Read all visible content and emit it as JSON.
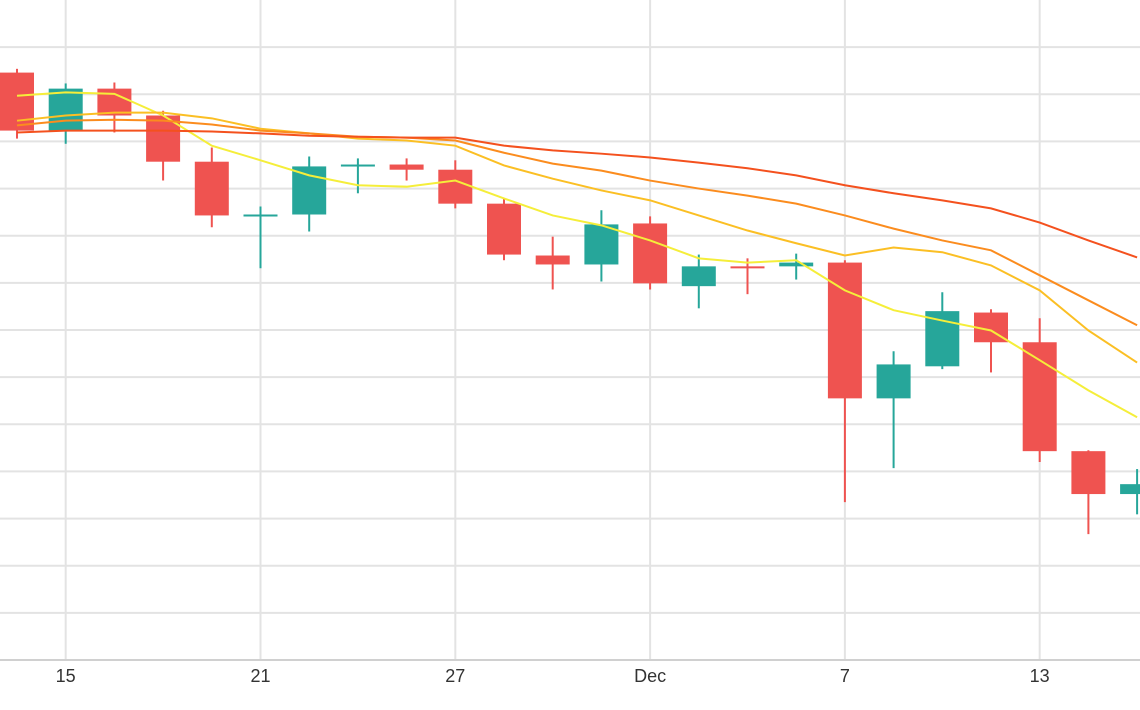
{
  "chart_data": {
    "type": "candlestick",
    "categories": [
      null,
      "15",
      null,
      null,
      null,
      "21",
      null,
      null,
      null,
      "27",
      null,
      null,
      null,
      "Dec",
      null,
      null,
      null,
      "7",
      null,
      null,
      null,
      "13",
      null,
      null
    ],
    "open": [
      124.6,
      112.3,
      121.2,
      115.5,
      105.7,
      94.5,
      94.5,
      105.1,
      105.1,
      104.0,
      96.8,
      85.8,
      83.9,
      92.6,
      79.3,
      83.5,
      83.5,
      84.3,
      55.5,
      62.3,
      73.7,
      67.4,
      44.3,
      35.2
    ],
    "high": [
      125.4,
      122.3,
      122.5,
      116.5,
      108.7,
      96.2,
      106.8,
      106.4,
      106.4,
      106.0,
      97.9,
      89.8,
      95.4,
      94.1,
      86.0,
      85.2,
      86.2,
      84.8,
      65.5,
      78.0,
      74.4,
      72.5,
      44.5,
      40.5
    ],
    "low": [
      110.6,
      109.5,
      111.9,
      101.7,
      91.8,
      83.1,
      90.9,
      99.0,
      101.7,
      95.8,
      84.8,
      78.6,
      80.3,
      78.6,
      74.6,
      77.6,
      80.7,
      33.5,
      40.7,
      61.7,
      61.0,
      42.0,
      26.7,
      30.9
    ],
    "close": [
      112.3,
      121.2,
      115.5,
      105.7,
      94.3,
      94.5,
      104.7,
      105.1,
      104.0,
      96.8,
      86.0,
      83.9,
      92.4,
      79.9,
      83.5,
      83.3,
      84.3,
      55.5,
      62.7,
      74.0,
      67.4,
      44.3,
      35.2,
      37.3
    ],
    "up_color": "#26a69a",
    "down_color": "#ef5350",
    "moving_averages": [
      {
        "color": "#f5ee3a",
        "values": [
          119.7,
          120.4,
          120.1,
          115.5,
          109.1,
          106.0,
          102.8,
          100.7,
          100.4,
          101.7,
          97.9,
          94.3,
          92.2,
          89.0,
          85.2,
          84.3,
          84.8,
          78.4,
          74.2,
          72.0,
          69.9,
          63.6,
          57.2,
          51.5
        ]
      },
      {
        "color": "#fbbf24",
        "values": [
          114.4,
          115.5,
          116.1,
          116.1,
          114.9,
          112.7,
          111.7,
          110.6,
          110.2,
          109.1,
          104.9,
          102.1,
          99.6,
          97.5,
          94.3,
          91.1,
          88.4,
          85.8,
          87.5,
          86.5,
          83.7,
          78.4,
          69.9,
          63.1
        ]
      },
      {
        "color": "#fb8c1e",
        "values": [
          113.4,
          114.4,
          114.6,
          114.4,
          113.6,
          112.3,
          111.7,
          111.0,
          110.8,
          110.2,
          107.6,
          105.3,
          103.8,
          101.7,
          100.0,
          98.5,
          96.8,
          94.3,
          91.5,
          89.0,
          86.9,
          81.6,
          76.3,
          71.0
        ]
      },
      {
        "color": "#f4511e",
        "values": [
          111.9,
          112.3,
          112.3,
          112.3,
          112.1,
          111.7,
          111.2,
          111.0,
          110.8,
          110.8,
          109.1,
          108.1,
          107.4,
          106.6,
          105.5,
          104.3,
          102.8,
          100.7,
          99.0,
          97.5,
          95.8,
          92.8,
          89.0,
          85.4
        ]
      }
    ],
    "ylim": [
      0,
      140
    ],
    "yticks": [
      0,
      10,
      20,
      30,
      40,
      50,
      60,
      70,
      80,
      90,
      100,
      110,
      120,
      130
    ],
    "grid": true
  }
}
